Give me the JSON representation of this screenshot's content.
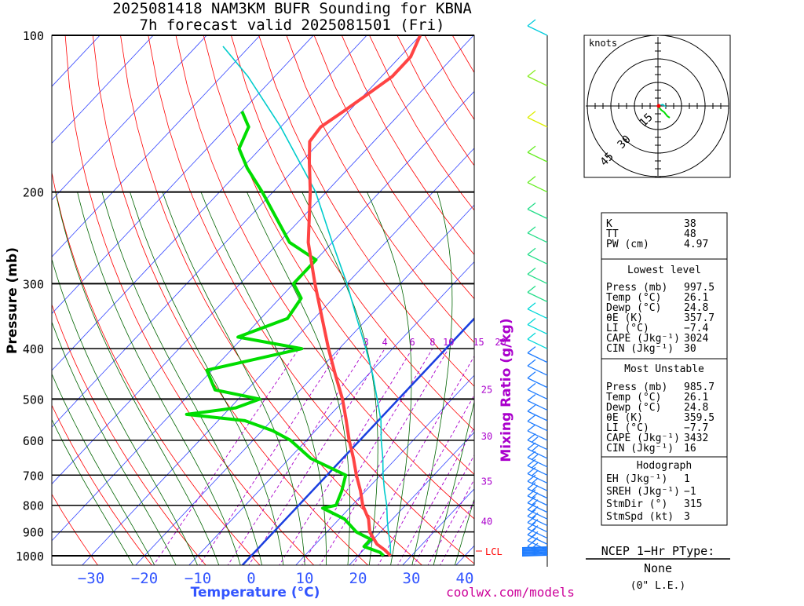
{
  "chart_data": {
    "type": "skew-t",
    "title_line1": "2025081418 NAM3KM BUFR Sounding for KBNA",
    "title_line2": "7h forecast valid 2025081501 (Fri)",
    "ylabel": "Pressure (mb)",
    "xlabel": "Temperature (°C)",
    "mixing_label": "Mixing Ratio (g/kg)",
    "credit": "coolwx.com/models",
    "lcl_label": "LCL",
    "hodo_label": "knots",
    "hodo_ring_labels": [
      "15",
      "30",
      "45"
    ],
    "pressure_ticks": [
      {
        "p": 1000,
        "label": "1000"
      },
      {
        "p": 900,
        "label": "900"
      },
      {
        "p": 800,
        "label": "800"
      },
      {
        "p": 700,
        "label": "700"
      },
      {
        "p": 600,
        "label": "600"
      },
      {
        "p": 500,
        "label": "500"
      },
      {
        "p": 400,
        "label": "400"
      },
      {
        "p": 300,
        "label": "300"
      },
      {
        "p": 200,
        "label": "200"
      },
      {
        "p": 100,
        "label": "100"
      }
    ],
    "temp_ticks": [
      {
        "t": -30,
        "label": "−30"
      },
      {
        "t": -20,
        "label": "−20"
      },
      {
        "t": -10,
        "label": "−10"
      },
      {
        "t": 0,
        "label": "0"
      },
      {
        "t": 10,
        "label": "10"
      },
      {
        "t": 20,
        "label": "20"
      },
      {
        "t": 30,
        "label": "30"
      },
      {
        "t": 40,
        "label": "40"
      }
    ],
    "mixing_ratio_labels": [
      {
        "w": "3",
        "p": 400
      },
      {
        "w": "4",
        "p": 400
      },
      {
        "w": "6",
        "p": 400
      },
      {
        "w": "8",
        "p": 400
      },
      {
        "w": "10",
        "p": 400
      },
      {
        "w": "15",
        "p": 400
      },
      {
        "w": "20",
        "p": 400
      },
      {
        "w": "25",
        "p": 480
      },
      {
        "w": "30",
        "p": 590
      },
      {
        "w": "35",
        "p": 720
      },
      {
        "w": "40",
        "p": 860
      }
    ],
    "lcl_pressure": 995,
    "temperature_profile": [
      {
        "p": 1000,
        "t": 26.1
      },
      {
        "p": 975,
        "t": 24.0
      },
      {
        "p": 950,
        "t": 21.5
      },
      {
        "p": 900,
        "t": 18.0
      },
      {
        "p": 850,
        "t": 15.5
      },
      {
        "p": 800,
        "t": 12.0
      },
      {
        "p": 750,
        "t": 9.0
      },
      {
        "p": 700,
        "t": 5.5
      },
      {
        "p": 650,
        "t": 2.0
      },
      {
        "p": 600,
        "t": -2.0
      },
      {
        "p": 550,
        "t": -6.0
      },
      {
        "p": 500,
        "t": -10.5
      },
      {
        "p": 450,
        "t": -16.0
      },
      {
        "p": 400,
        "t": -22.0
      },
      {
        "p": 350,
        "t": -28.5
      },
      {
        "p": 300,
        "t": -36.0
      },
      {
        "p": 250,
        "t": -44.5
      },
      {
        "p": 200,
        "t": -53.0
      },
      {
        "p": 175,
        "t": -58.5
      },
      {
        "p": 160,
        "t": -62.0
      },
      {
        "p": 150,
        "t": -62.5
      },
      {
        "p": 140,
        "t": -61.0
      },
      {
        "p": 130,
        "t": -59.5
      },
      {
        "p": 120,
        "t": -58.0
      },
      {
        "p": 110,
        "t": -58.0
      },
      {
        "p": 100,
        "t": -60.0
      }
    ],
    "dewpoint_profile": [
      {
        "p": 1000,
        "t": 24.8
      },
      {
        "p": 985,
        "t": 23.5
      },
      {
        "p": 960,
        "t": 19.5
      },
      {
        "p": 930,
        "t": 19.5
      },
      {
        "p": 900,
        "t": 15.5
      },
      {
        "p": 850,
        "t": 11.0
      },
      {
        "p": 810,
        "t": 5.0
      },
      {
        "p": 800,
        "t": 7.0
      },
      {
        "p": 750,
        "t": 5.5
      },
      {
        "p": 700,
        "t": 3.5
      },
      {
        "p": 650,
        "t": -6.0
      },
      {
        "p": 600,
        "t": -13.0
      },
      {
        "p": 575,
        "t": -18.0
      },
      {
        "p": 550,
        "t": -25.0
      },
      {
        "p": 535,
        "t": -37.0
      },
      {
        "p": 520,
        "t": -29.0
      },
      {
        "p": 500,
        "t": -26.0
      },
      {
        "p": 480,
        "t": -36.0
      },
      {
        "p": 440,
        "t": -41.0
      },
      {
        "p": 400,
        "t": -27.0
      },
      {
        "p": 380,
        "t": -41.0
      },
      {
        "p": 350,
        "t": -35.0
      },
      {
        "p": 320,
        "t": -36.0
      },
      {
        "p": 300,
        "t": -40.0
      },
      {
        "p": 270,
        "t": -40.0
      },
      {
        "p": 250,
        "t": -48.0
      },
      {
        "p": 200,
        "t": -62.0
      },
      {
        "p": 180,
        "t": -69.0
      },
      {
        "p": 165,
        "t": -74.0
      },
      {
        "p": 150,
        "t": -76.0
      },
      {
        "p": 140,
        "t": -80.0
      }
    ],
    "parcel_profile": [
      {
        "p": 1000,
        "t": 26.1
      },
      {
        "p": 950,
        "t": 24.0
      },
      {
        "p": 900,
        "t": 21.5
      },
      {
        "p": 850,
        "t": 19.0
      },
      {
        "p": 800,
        "t": 16.5
      },
      {
        "p": 750,
        "t": 13.5
      },
      {
        "p": 700,
        "t": 10.5
      },
      {
        "p": 650,
        "t": 7.5
      },
      {
        "p": 600,
        "t": 4.0
      },
      {
        "p": 550,
        "t": 0.5
      },
      {
        "p": 500,
        "t": -4.0
      },
      {
        "p": 450,
        "t": -9.0
      },
      {
        "p": 400,
        "t": -15.0
      },
      {
        "p": 350,
        "t": -22.0
      },
      {
        "p": 300,
        "t": -30.0
      },
      {
        "p": 250,
        "t": -40.0
      },
      {
        "p": 200,
        "t": -52.0
      },
      {
        "p": 150,
        "t": -70.0
      },
      {
        "p": 120,
        "t": -85.0
      },
      {
        "p": 105,
        "t": -95.0
      }
    ],
    "axes": {
      "pressure_range": [
        1000,
        100
      ],
      "temperature_range": [
        -40,
        40
      ],
      "pressure_scale": "log",
      "skewed": true
    }
  },
  "stats": {
    "index": [
      {
        "label": "K",
        "value": "38"
      },
      {
        "label": "TT",
        "value": "48"
      },
      {
        "label": "PW (cm)",
        "value": "4.97"
      }
    ],
    "lowest_header": "Lowest level",
    "lowest": [
      {
        "label": "Press (mb)",
        "value": "997.5"
      },
      {
        "label": "Temp (°C)",
        "value": "26.1"
      },
      {
        "label": "Dewp (°C)",
        "value": "24.8"
      },
      {
        "label": "θE (K)",
        "value": "357.7"
      },
      {
        "label": "LI (°C)",
        "value": "−7.4"
      },
      {
        "label": "CAPE (Jkg⁻¹)",
        "value": "3024"
      },
      {
        "label": "CIN (Jkg⁻¹)",
        "value": "30"
      }
    ],
    "unstable_header": "Most Unstable",
    "unstable": [
      {
        "label": "Press (mb)",
        "value": "985.7"
      },
      {
        "label": "Temp (°C)",
        "value": "26.1"
      },
      {
        "label": "Dewp (°C)",
        "value": "24.8"
      },
      {
        "label": "θE (K)",
        "value": "359.5"
      },
      {
        "label": "LI (°C)",
        "value": "−7.7"
      },
      {
        "label": "CAPE (Jkg⁻¹)",
        "value": "3432"
      },
      {
        "label": "CIN (Jkg⁻¹)",
        "value": "16"
      }
    ],
    "hodo_header": "Hodograph",
    "hodo": [
      {
        "label": "EH (Jkg⁻¹)",
        "value": "1"
      },
      {
        "label": "SREH (Jkg⁻¹)",
        "value": "−1"
      },
      {
        "label": "StmDir (°)",
        "value": "315"
      },
      {
        "label": "StmSpd (kt)",
        "value": "3"
      }
    ]
  },
  "ptype": {
    "title": "NCEP 1−Hr PType:",
    "value": "None",
    "note": "(0\" L.E.)"
  },
  "colors": {
    "temperature": "#ff4444",
    "dewpoint": "#00dd00",
    "parcel": "#00cccc",
    "isotherm": "#3344ff",
    "dry_adiabat": "#ff0000",
    "moist_adiabat": "#006400",
    "mixing": "#aa00cc",
    "freezing": "#1a3fe0",
    "axis_text": "#3355ff"
  }
}
